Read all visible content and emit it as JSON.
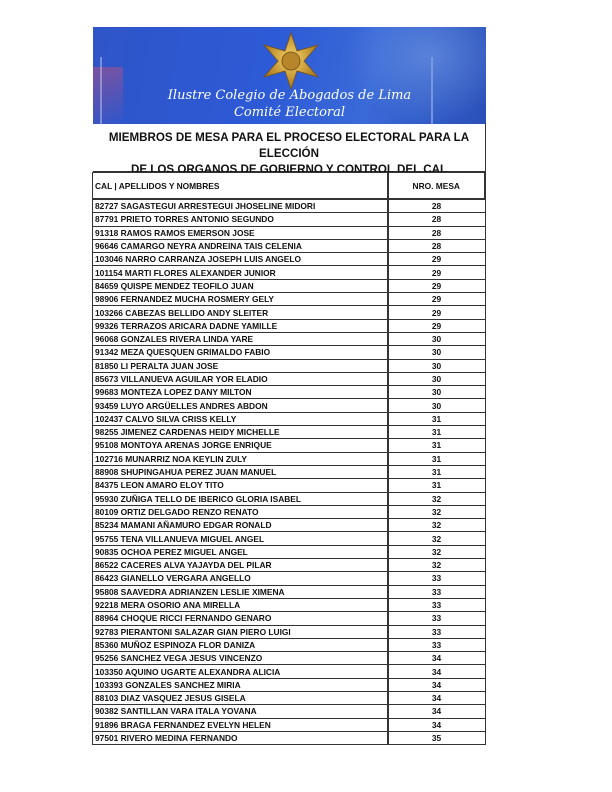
{
  "header": {
    "institution": "Ilustre Colegio de Abogados de Lima",
    "committee": "Comité Electoral",
    "logo": "gold-star-emblem",
    "banner_color": "#2f55c8"
  },
  "title": {
    "line1": "MIEMBROS DE MESA PARA EL PROCESO ELECTORAL PARA LA ELECCIÓN",
    "line2": "DE LOS ORGANOS DE GOBIERNO Y CONTROL DEL CAL"
  },
  "table": {
    "columns": [
      "CAL  | APELLIDOS Y NOMBRES",
      "NRO. MESA"
    ],
    "rows": [
      {
        "name": "82727 SAGASTEGUI ARRESTEGUI JHOSELINE MIDORI",
        "mesa": "28"
      },
      {
        "name": "87791 PRIETO TORRES ANTONIO SEGUNDO",
        "mesa": "28"
      },
      {
        "name": "91318 RAMOS RAMOS EMERSON JOSE",
        "mesa": "28"
      },
      {
        "name": "96646 CAMARGO NEYRA ANDREINA TAIS CELENIA",
        "mesa": "28"
      },
      {
        "name": "103046 NARRO CARRANZA JOSEPH LUIS ANGELO",
        "mesa": "29"
      },
      {
        "name": "101154 MARTI FLORES ALEXANDER JUNIOR",
        "mesa": "29"
      },
      {
        "name": "84659 QUISPE MENDEZ TEOFILO JUAN",
        "mesa": "29"
      },
      {
        "name": "98906 FERNANDEZ MUCHA ROSMERY GELY",
        "mesa": "29"
      },
      {
        "name": "103266 CABEZAS BELLIDO ANDY SLEITER",
        "mesa": "29"
      },
      {
        "name": "99326 TERRAZOS ARICARA DADNE YAMILLE",
        "mesa": "29"
      },
      {
        "name": "96068 GONZALES RIVERA LINDA YARE",
        "mesa": "30"
      },
      {
        "name": "91342 MEZA QUESQUEN GRIMALDO FABIO",
        "mesa": "30"
      },
      {
        "name": "81850 LI PERALTA JUAN JOSE",
        "mesa": "30"
      },
      {
        "name": "85673 VILLANUEVA AGUILAR YOR ELADIO",
        "mesa": "30"
      },
      {
        "name": "99683 MONTEZA LOPEZ DANY MILTON",
        "mesa": "30"
      },
      {
        "name": "93459 LUYO ARGÜELLES ANDRES ABDON",
        "mesa": "30"
      },
      {
        "name": "102437 CALVO SILVA CRISS KELLY",
        "mesa": "31"
      },
      {
        "name": "98255 JIMENEZ CARDENAS HEIDY MICHELLE",
        "mesa": "31"
      },
      {
        "name": "95108 MONTOYA ARENAS JORGE ENRIQUE",
        "mesa": "31"
      },
      {
        "name": "102716 MUNARRIZ NOA KEYLIN ZULY",
        "mesa": "31"
      },
      {
        "name": "88908 SHUPINGAHUA PEREZ JUAN MANUEL",
        "mesa": "31"
      },
      {
        "name": "84375 LEON AMARO ELOY TITO",
        "mesa": "31"
      },
      {
        "name": "95930 ZUÑIGA TELLO DE IBERICO GLORIA ISABEL",
        "mesa": "32"
      },
      {
        "name": "80109 ORTIZ DELGADO RENZO RENATO",
        "mesa": "32"
      },
      {
        "name": "85234 MAMANI AÑAMURO EDGAR RONALD",
        "mesa": "32"
      },
      {
        "name": "95755 TENA VILLANUEVA MIGUEL ANGEL",
        "mesa": "32"
      },
      {
        "name": "90835 OCHOA PEREZ MIGUEL ANGEL",
        "mesa": "32"
      },
      {
        "name": "86522 CACERES ALVA YAJAYDA DEL PILAR",
        "mesa": "32"
      },
      {
        "name": "86423 GIANELLO VERGARA ANGELLO",
        "mesa": "33"
      },
      {
        "name": "95808 SAAVEDRA ADRIANZEN LESLIE XIMENA",
        "mesa": "33"
      },
      {
        "name": "92218 MERA OSORIO ANA MIRELLA",
        "mesa": "33"
      },
      {
        "name": "88964 CHOQUE RICCI FERNANDO GENARO",
        "mesa": "33"
      },
      {
        "name": "92783 PIERANTONI SALAZAR GIAN PIERO LUIGI",
        "mesa": "33"
      },
      {
        "name": "85360 MUÑOZ ESPINOZA FLOR DANIZA",
        "mesa": "33"
      },
      {
        "name": "95256 SANCHEZ VEGA JESUS VINCENZO",
        "mesa": "34"
      },
      {
        "name": "103350 AQUINO UGARTE ALEXANDRA ALICIA",
        "mesa": "34"
      },
      {
        "name": "103393 GONZALES SANCHEZ MIRIA",
        "mesa": "34"
      },
      {
        "name": "88103 DIAZ VASQUEZ JESUS GISELA",
        "mesa": "34"
      },
      {
        "name": "90382 SANTILLAN VARA ITALA YOVANA",
        "mesa": "34"
      },
      {
        "name": "91896 BRAGA FERNANDEZ EVELYN HELEN",
        "mesa": "34"
      },
      {
        "name": "97501 RIVERO MEDINA FERNANDO",
        "mesa": "35"
      }
    ]
  }
}
